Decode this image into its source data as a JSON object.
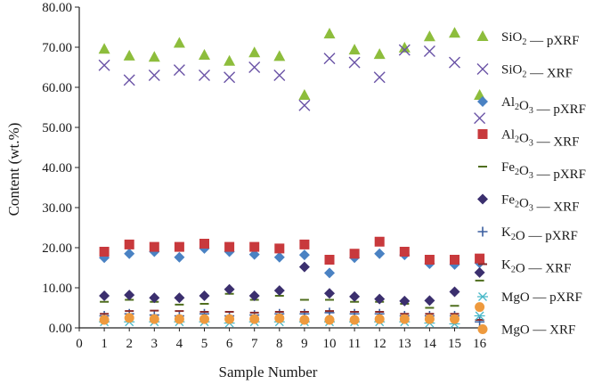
{
  "chart_data": {
    "type": "scatter",
    "xlabel": "Sample Number",
    "ylabel": "Content (wt.%)",
    "xlim": [
      0,
      16
    ],
    "ylim": [
      0,
      80
    ],
    "x_ticks": [
      "0",
      "1",
      "2",
      "3",
      "4",
      "5",
      "6",
      "7",
      "8",
      "9",
      "10",
      "11",
      "12",
      "13",
      "14",
      "15",
      "16"
    ],
    "y_ticks": [
      "0.00",
      "10.00",
      "20.00",
      "30.00",
      "40.00",
      "50.00",
      "60.00",
      "70.00",
      "80.00"
    ],
    "x": [
      1,
      2,
      3,
      4,
      5,
      6,
      7,
      8,
      9,
      10,
      11,
      12,
      13,
      14,
      15,
      16
    ],
    "series": [
      {
        "name": "SiO2 — pXRF",
        "base": "SiO",
        "sub": "2",
        "method": "— pXRF",
        "marker": "triangle",
        "color": "#8dbd3c",
        "values": [
          69.5,
          67.8,
          67.5,
          71,
          68,
          66.5,
          68.6,
          67.7,
          58,
          73.3,
          69.3,
          68.2,
          69.8,
          72.6,
          73.5,
          58
        ]
      },
      {
        "name": "SiO2 — XRF",
        "base": "SiO",
        "sub": "2",
        "method": "— XRF",
        "marker": "x",
        "color": "#6a53a6",
        "values": [
          65.5,
          61.8,
          63,
          64.3,
          63,
          62.5,
          65,
          63,
          55.5,
          67.2,
          66.2,
          62.5,
          69.3,
          69,
          66.2,
          52.3
        ]
      },
      {
        "name": "Al2O3 — pXRF",
        "base": "Al",
        "sub": "2",
        "base2": "O",
        "sub2": "3",
        "method": "— pXRF",
        "marker": "diamond",
        "color": "#4a82c3",
        "values": [
          17.5,
          18.5,
          19,
          17.6,
          19.8,
          19,
          18.3,
          17.6,
          18.2,
          13.7,
          17.5,
          18.5,
          18.2,
          16,
          15.8,
          16.2
        ]
      },
      {
        "name": "Al2O3 — XRF",
        "base": "Al",
        "sub": "2",
        "base2": "O",
        "sub2": "3",
        "method": "— XRF",
        "marker": "square",
        "color": "#c8393c",
        "values": [
          19,
          20.8,
          20.2,
          20.2,
          21,
          20.2,
          20.2,
          19.8,
          20.8,
          17,
          18.5,
          21.5,
          19,
          17,
          17,
          17.3
        ]
      },
      {
        "name": "Fe2O3 — pXRF",
        "base": "Fe",
        "sub": "2",
        "base2": "O",
        "sub2": "3",
        "method": "— pXRF",
        "marker": "dash",
        "color": "#4f6e1e",
        "values": [
          6.5,
          7,
          6.5,
          5.8,
          6,
          8.5,
          7,
          8,
          7,
          7,
          6.5,
          6.5,
          6,
          5,
          5.5,
          11.8
        ]
      },
      {
        "name": "Fe2O3 — XRF",
        "base": "Fe",
        "sub": "2",
        "base2": "O",
        "sub2": "3",
        "method": "— XRF",
        "marker": "diamond",
        "color": "#3b2f6e",
        "values": [
          8,
          8.2,
          7.5,
          7.5,
          8,
          9.6,
          8,
          9.3,
          15.2,
          8.6,
          7.8,
          7.2,
          6.7,
          6.8,
          9,
          13.8
        ]
      },
      {
        "name": "K2O — pXRF",
        "base": "K",
        "sub": "2",
        "base2": "O",
        "method": "— pXRF",
        "marker": "plus",
        "color": "#3b5fa0",
        "values": [
          3,
          3.5,
          3.2,
          3,
          3.5,
          3,
          3.2,
          3.5,
          3.5,
          3.8,
          3.5,
          3.5,
          3,
          3,
          3,
          1.5
        ]
      },
      {
        "name": "K2O — XRF",
        "base": "K",
        "sub": "2",
        "base2": "O",
        "method": "— XRF",
        "marker": "dash",
        "color": "#8a2b2b",
        "values": [
          3.5,
          4.2,
          4.3,
          4.2,
          4,
          4,
          3.8,
          4,
          4,
          4.2,
          4,
          4,
          3.5,
          3.5,
          3.5,
          2
        ]
      },
      {
        "name": "MgO — pXRF",
        "base": "MgO",
        "method": "— pXRF",
        "marker": "star",
        "color": "#48b8c8",
        "values": [
          1.5,
          1.5,
          1.5,
          1.5,
          1.5,
          1.2,
          1.5,
          1.5,
          1.5,
          1.5,
          1.5,
          1.5,
          1.5,
          1.2,
          1,
          3
        ]
      },
      {
        "name": "MgO — XRF",
        "base": "MgO",
        "method": "— XRF",
        "marker": "circle",
        "color": "#ee9a3e",
        "values": [
          2,
          2.5,
          2.2,
          2.2,
          2.2,
          2.2,
          2.2,
          2.4,
          2,
          2,
          2,
          2.2,
          2.2,
          2.2,
          2.2,
          5.2
        ]
      }
    ]
  }
}
